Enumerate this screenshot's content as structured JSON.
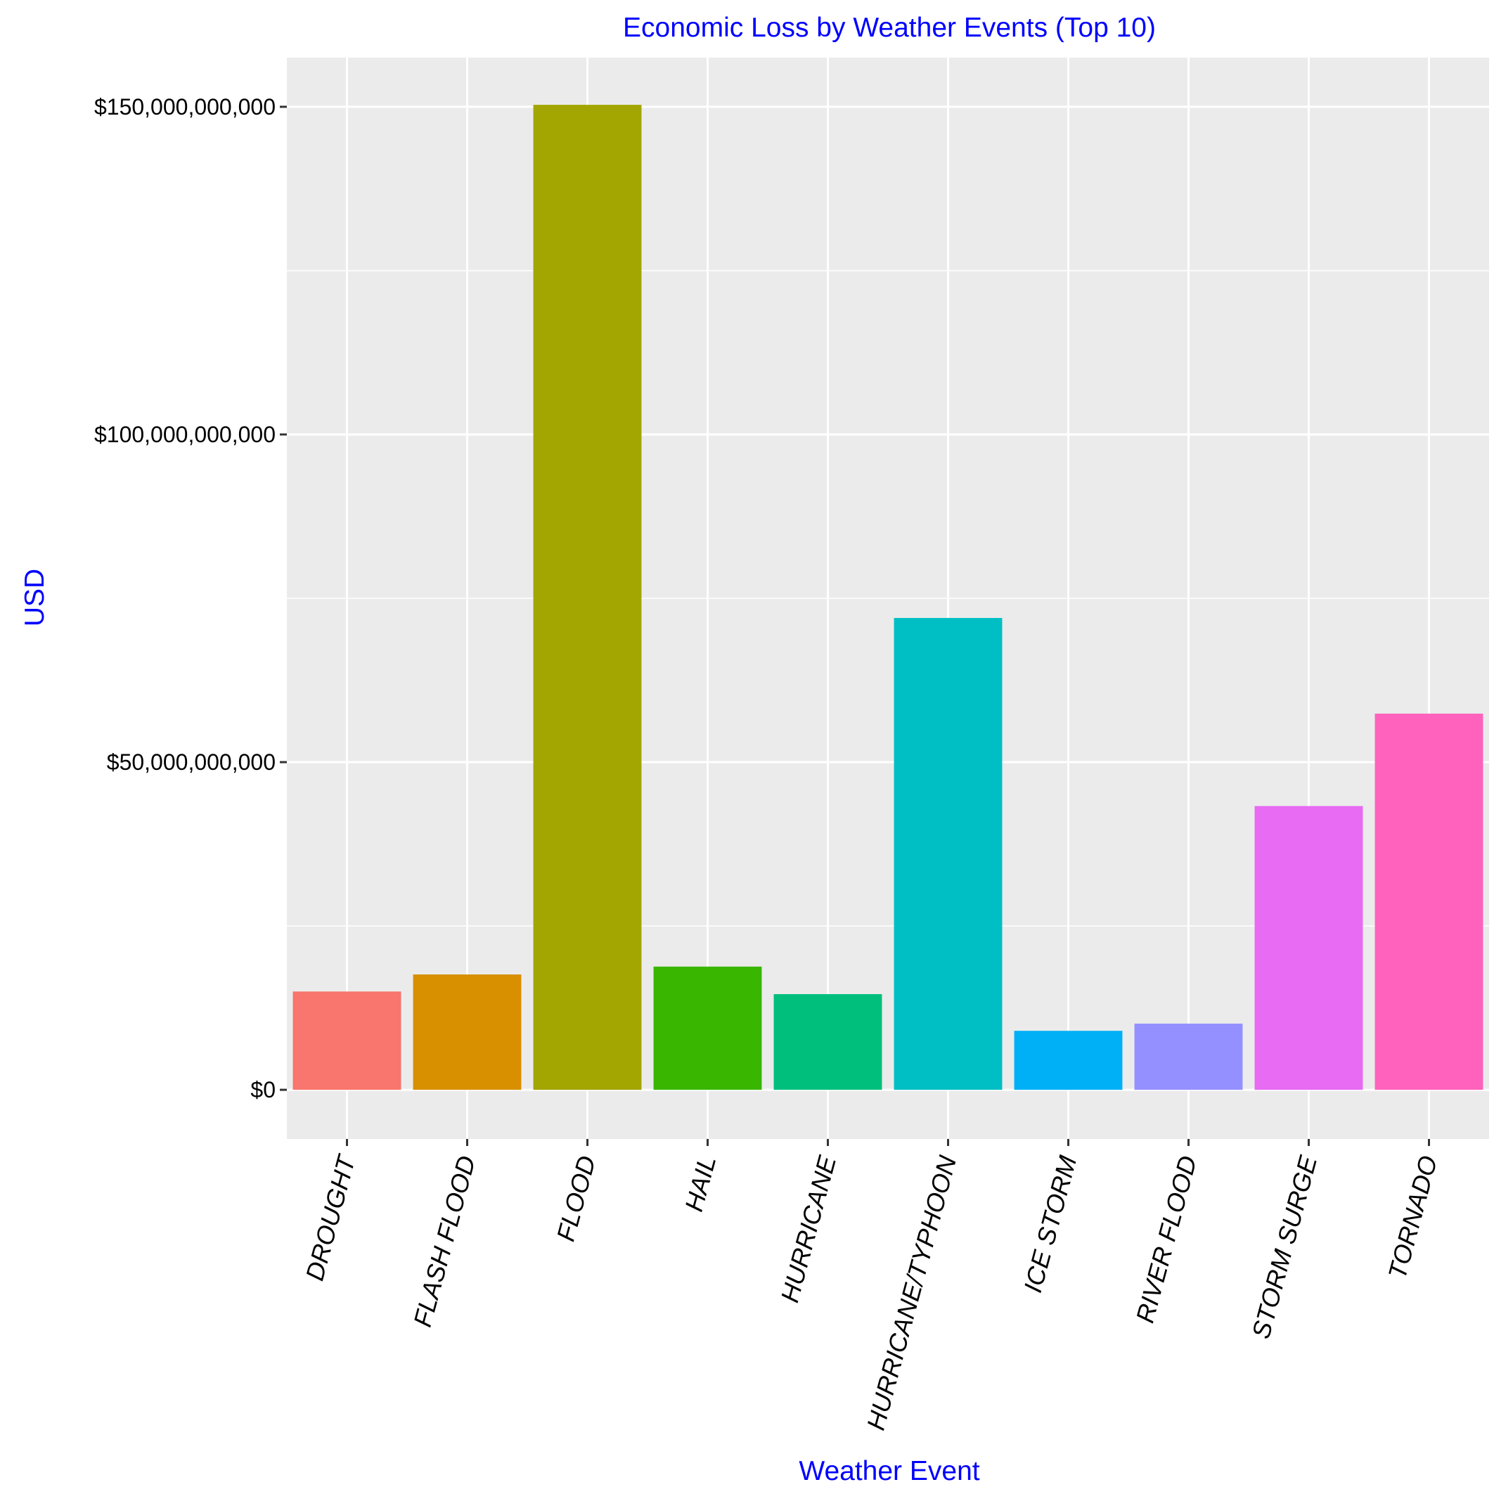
{
  "chart_data": {
    "type": "bar",
    "title": "Economic Loss by Weather Events (Top 10)",
    "xlabel": "Weather Event",
    "ylabel": "USD",
    "categories": [
      "DROUGHT",
      "FLASH FLOOD",
      "FLOOD",
      "HAIL",
      "HURRICANE",
      "HURRICANE/TYPHOON",
      "ICE STORM",
      "RIVER FLOOD",
      "STORM SURGE",
      "TORNADO"
    ],
    "values": [
      15000000000,
      17600000000,
      150300000000,
      18800000000,
      14600000000,
      72000000000,
      9000000000,
      10100000000,
      43300000000,
      57400000000
    ],
    "colors": [
      "#F8766D",
      "#D89000",
      "#A3A500",
      "#39B600",
      "#00BF7D",
      "#00BFC4",
      "#00B0F6",
      "#9590FF",
      "#E76BF3",
      "#FF62BC"
    ],
    "ylim": [
      -7500000000,
      157500000000
    ],
    "y_ticks": [
      0,
      50000000000,
      100000000000,
      150000000000
    ],
    "y_tick_labels": [
      "$0",
      "$50,000,000,000",
      "$100,000,000,000",
      "$150,000,000,000"
    ],
    "grid": true,
    "legend": "none",
    "panel_color": "#EBEBEB",
    "grid_color": "#FFFFFF",
    "title_color": "#0000FF"
  }
}
